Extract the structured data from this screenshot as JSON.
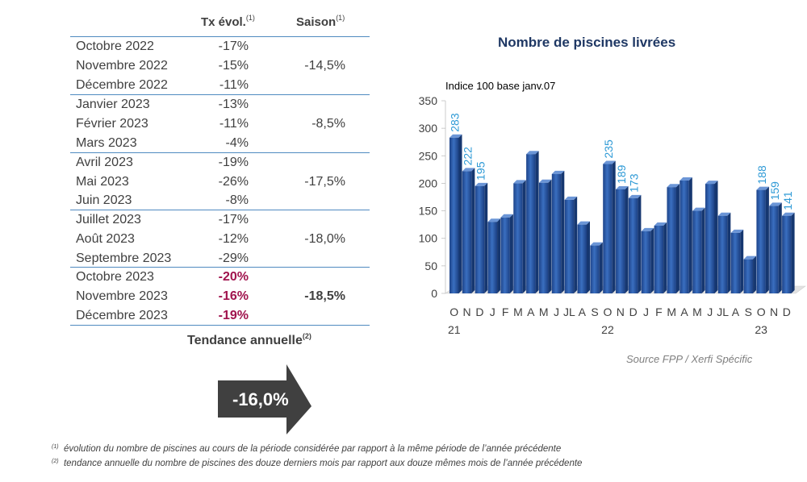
{
  "table": {
    "header_tx": "Tx évol.",
    "header_saison": "Saison",
    "note_mark_1": "(1)",
    "rows": [
      {
        "month": "Octobre 2022",
        "tx": "-17%"
      },
      {
        "month": "Novembre 2022",
        "tx": "-15%"
      },
      {
        "month": "Décembre 2022",
        "tx": "-11%"
      },
      {
        "month": "Janvier 2023",
        "tx": "-13%"
      },
      {
        "month": "Février 2023",
        "tx": "-11%"
      },
      {
        "month": "Mars 2023",
        "tx": "-4%"
      },
      {
        "month": "Avril 2023",
        "tx": "-19%"
      },
      {
        "month": "Mai 2023",
        "tx": "-26%"
      },
      {
        "month": "Juin 2023",
        "tx": "-8%"
      },
      {
        "month": "Juillet 2023",
        "tx": "-17%"
      },
      {
        "month": "Août 2023",
        "tx": "-12%"
      },
      {
        "month": "Septembre 2023",
        "tx": "-29%"
      },
      {
        "month": "Octobre 2023",
        "tx": "-20%"
      },
      {
        "month": "Novembre 2023",
        "tx": "-16%"
      },
      {
        "month": "Décembre 2023",
        "tx": "-19%"
      }
    ],
    "saisons": [
      "-14,5%",
      "-8,5%",
      "-17,5%",
      "-18,0%",
      "-18,5%"
    ],
    "highlight_color": "#a0134d"
  },
  "tendance": {
    "label": "Tendance annuelle",
    "note_mark": "(2)",
    "value": "-16,0%",
    "arrow_color": "#404040"
  },
  "footnotes": [
    {
      "mark": "(1)",
      "text": "évolution du nombre de piscines au cours de la période considérée par rapport à la même période de l’année précédente"
    },
    {
      "mark": "(2)",
      "text": "tendance annuelle du nombre de piscines des douze derniers mois par rapport aux douze mêmes mois de l’année précédente"
    }
  ],
  "chart_data": {
    "type": "bar",
    "title": "Nombre de piscines livrées",
    "subtitle": "Indice 100 base janv.07",
    "source": "Source FPP / Xerfi Spécific",
    "ylim": [
      0,
      350
    ],
    "yticks": [
      0,
      50,
      100,
      150,
      200,
      250,
      300,
      350
    ],
    "categories": [
      "O",
      "N",
      "D",
      "J",
      "F",
      "M",
      "A",
      "M",
      "J",
      "JL",
      "A",
      "S",
      "O",
      "N",
      "D",
      "J",
      "F",
      "M",
      "A",
      "M",
      "J",
      "JL",
      "A",
      "S",
      "O",
      "N",
      "D"
    ],
    "year_labels": [
      {
        "index": 0,
        "label": "21"
      },
      {
        "index": 12,
        "label": "22"
      },
      {
        "index": 24,
        "label": "23"
      }
    ],
    "values": [
      283,
      222,
      195,
      130,
      138,
      200,
      253,
      201,
      217,
      170,
      125,
      87,
      235,
      189,
      173,
      113,
      123,
      193,
      205,
      150,
      199,
      141,
      110,
      62,
      188,
      159,
      141
    ],
    "labeled_indices": [
      0,
      1,
      2,
      12,
      13,
      14,
      24,
      25,
      26
    ],
    "bar_color": "#2e5fae",
    "label_color": "#2e9ad6"
  }
}
